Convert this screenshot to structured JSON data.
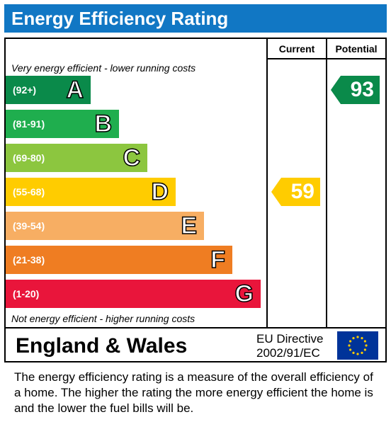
{
  "title": "Energy Efficiency Rating",
  "columns": {
    "current": "Current",
    "potential": "Potential"
  },
  "top_note": "Very energy efficient - lower running costs",
  "bottom_note": "Not energy efficient - higher running costs",
  "colors": {
    "header": "#1177c4"
  },
  "chart_data": {
    "type": "bar",
    "categories": [
      "A",
      "B",
      "C",
      "D",
      "E",
      "F",
      "G"
    ],
    "bands": [
      {
        "letter": "A",
        "range": "(92+)",
        "color": "#0a8a4a"
      },
      {
        "letter": "B",
        "range": "(81-91)",
        "color": "#1fae4e"
      },
      {
        "letter": "C",
        "range": "(69-80)",
        "color": "#8cc63f"
      },
      {
        "letter": "D",
        "range": "(55-68)",
        "color": "#ffcc00"
      },
      {
        "letter": "E",
        "range": "(39-54)",
        "color": "#f7ae63"
      },
      {
        "letter": "F",
        "range": "(21-38)",
        "color": "#ef7d22"
      },
      {
        "letter": "G",
        "range": "(1-20)",
        "color": "#e9153b"
      }
    ],
    "series": [
      {
        "name": "Current",
        "value": 59,
        "band": "D",
        "color": "#ffcc00"
      },
      {
        "name": "Potential",
        "value": 93,
        "band": "A",
        "color": "#0a8a4a"
      }
    ]
  },
  "footer": {
    "country": "England & Wales",
    "directive_line1": "EU Directive",
    "directive_line2": "2002/91/EC"
  },
  "description": "The energy efficiency rating is a measure of the overall efficiency of a home.  The higher the rating the more energy efficient the home is and the lower the fuel bills will be."
}
